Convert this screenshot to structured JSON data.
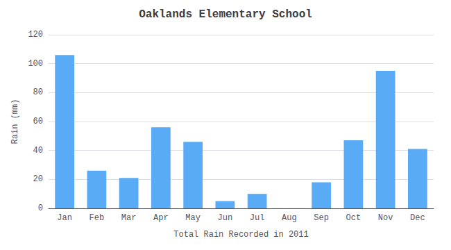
{
  "chart_data": {
    "type": "bar",
    "title": "Oaklands Elementary School",
    "xlabel": "Total Rain Recorded in 2011",
    "ylabel": "Rain (mm)",
    "categories": [
      "Jan",
      "Feb",
      "Mar",
      "Apr",
      "May",
      "Jun",
      "Jul",
      "Aug",
      "Sep",
      "Oct",
      "Nov",
      "Dec"
    ],
    "values": [
      106,
      26,
      21,
      56,
      46,
      5,
      10,
      0,
      18,
      47,
      95,
      41
    ],
    "color": "#5aabf5",
    "ylim": [
      0,
      120
    ],
    "yticks": [
      0,
      20,
      40,
      60,
      80,
      100,
      120
    ],
    "grid": true
  }
}
